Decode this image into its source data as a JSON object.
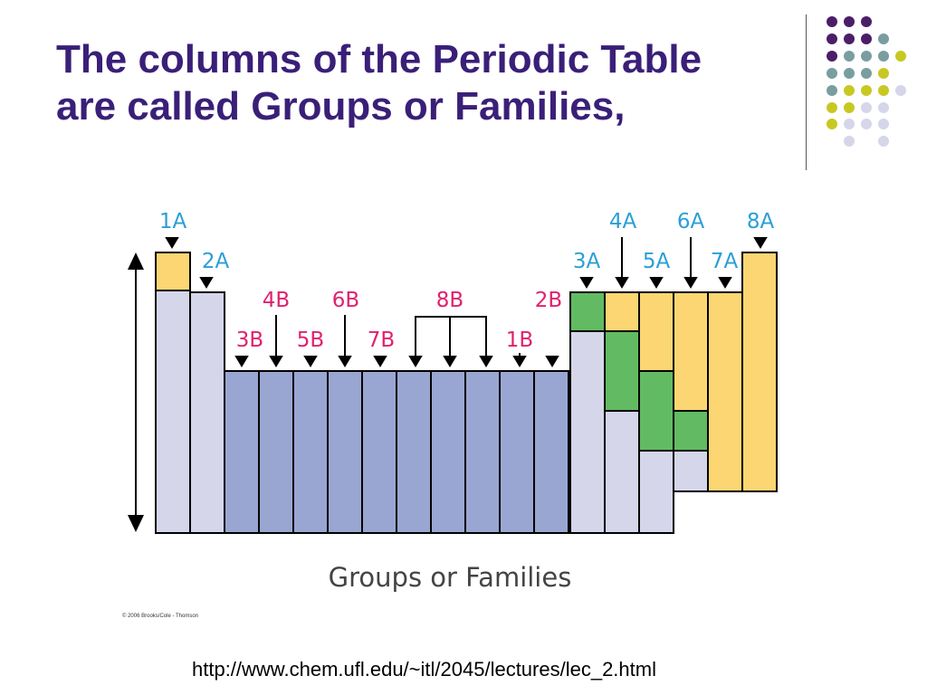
{
  "slide": {
    "title_line1": "The columns of the Periodic Table",
    "title_line2": "are called Groups or Families,",
    "footer_url": "http://www.chem.ufl.edu/~itl/2045/lectures/lec_2.html",
    "copyright": "© 2006 Brooks/Cole - Thomson"
  },
  "diagram": {
    "caption": "Groups or Families",
    "label_colors": {
      "main_group": "#2a9fd6",
      "transition": "#e0216f"
    },
    "group_labels": [
      {
        "name": "group-1a",
        "text": "1A",
        "kind": "main_group"
      },
      {
        "name": "group-2a",
        "text": "2A",
        "kind": "main_group"
      },
      {
        "name": "group-3b",
        "text": "3B",
        "kind": "transition"
      },
      {
        "name": "group-4b",
        "text": "4B",
        "kind": "transition"
      },
      {
        "name": "group-5b",
        "text": "5B",
        "kind": "transition"
      },
      {
        "name": "group-6b",
        "text": "6B",
        "kind": "transition"
      },
      {
        "name": "group-7b",
        "text": "7B",
        "kind": "transition"
      },
      {
        "name": "group-8b",
        "text": "8B",
        "kind": "transition"
      },
      {
        "name": "group-1b",
        "text": "1B",
        "kind": "transition"
      },
      {
        "name": "group-2b",
        "text": "2B",
        "kind": "transition"
      },
      {
        "name": "group-3a",
        "text": "3A",
        "kind": "main_group"
      },
      {
        "name": "group-4a",
        "text": "4A",
        "kind": "main_group"
      },
      {
        "name": "group-5a",
        "text": "5A",
        "kind": "main_group"
      },
      {
        "name": "group-6a",
        "text": "6A",
        "kind": "main_group"
      },
      {
        "name": "group-7a",
        "text": "7A",
        "kind": "main_group"
      },
      {
        "name": "group-8a",
        "text": "8A",
        "kind": "main_group"
      }
    ],
    "fill_colors": {
      "nonmetal": "#fcd672",
      "metal_light": "#d5d6ea",
      "transition_metal": "#9aa6d2",
      "metalloid": "#62bb62"
    }
  }
}
